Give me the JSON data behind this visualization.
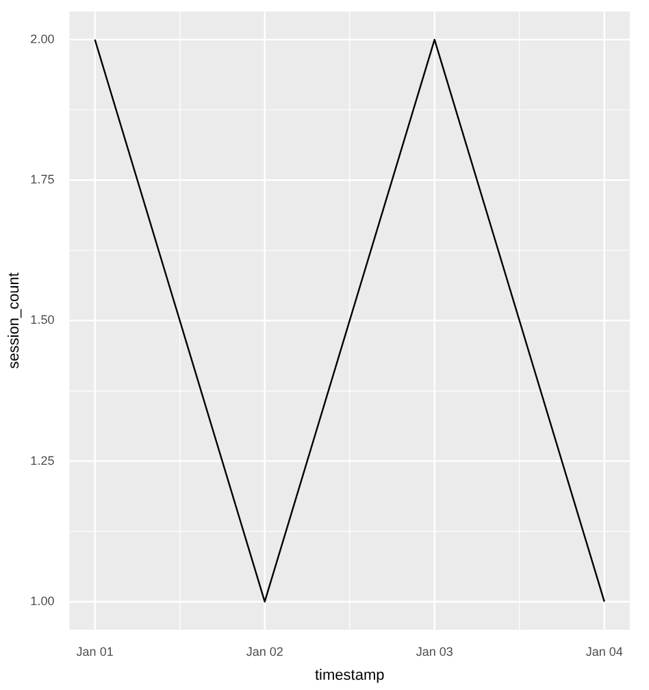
{
  "chart_data": {
    "type": "line",
    "categories": [
      "Jan 01",
      "Jan 02",
      "Jan 03",
      "Jan 04"
    ],
    "series": [
      {
        "color": "#000000",
        "values": [
          2,
          1,
          2,
          1
        ]
      }
    ],
    "xlabel": "timestamp",
    "ylabel": "session_count",
    "ylim": [
      0.95,
      2.05
    ],
    "yticks": [
      {
        "value": 1,
        "label": "1.00"
      },
      1.25,
      {
        "value": 1.5,
        "label": "1.50"
      },
      1.75,
      {
        "value": 2,
        "label": "2.00"
      }
    ],
    "grid": true,
    "legend": false,
    "marker": "none",
    "line_style": "solid"
  }
}
